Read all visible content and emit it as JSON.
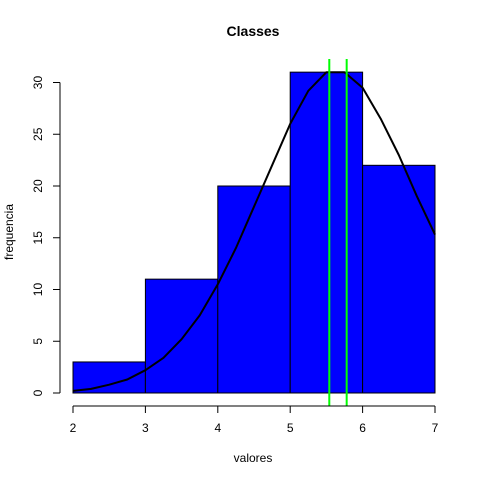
{
  "chart_data": {
    "type": "bar",
    "title": "Classes",
    "xlabel": "valores",
    "ylabel": "frequencia",
    "bins": [
      {
        "start": 2,
        "end": 3,
        "count": 3
      },
      {
        "start": 3,
        "end": 4,
        "count": 11
      },
      {
        "start": 4,
        "end": 5,
        "count": 20
      },
      {
        "start": 5,
        "end": 6,
        "count": 31
      },
      {
        "start": 6,
        "end": 7,
        "count": 22
      }
    ],
    "bar_color": "#0000ff",
    "curve": {
      "color": "#000000",
      "x": [
        2.0,
        2.25,
        2.5,
        2.75,
        3.0,
        3.25,
        3.5,
        3.75,
        4.0,
        4.25,
        4.5,
        4.75,
        5.0,
        5.25,
        5.5,
        5.75,
        6.0,
        6.25,
        6.5,
        6.75,
        7.0
      ],
      "y": [
        0.2,
        0.4,
        0.8,
        1.3,
        2.2,
        3.4,
        5.2,
        7.5,
        10.5,
        14.0,
        18.0,
        22.0,
        26.0,
        29.2,
        31.0,
        31.0,
        29.5,
        26.5,
        23.0,
        19.0,
        15.3
      ]
    },
    "vlines": {
      "color": "#00ff00",
      "x": [
        5.54,
        5.78
      ]
    },
    "xlim": [
      2,
      7
    ],
    "ylim": [
      0,
      32
    ],
    "xticks": [
      2,
      3,
      4,
      5,
      6,
      7
    ],
    "yticks": [
      0,
      5,
      10,
      15,
      20,
      25,
      30
    ],
    "grid": false,
    "legend": "none"
  }
}
